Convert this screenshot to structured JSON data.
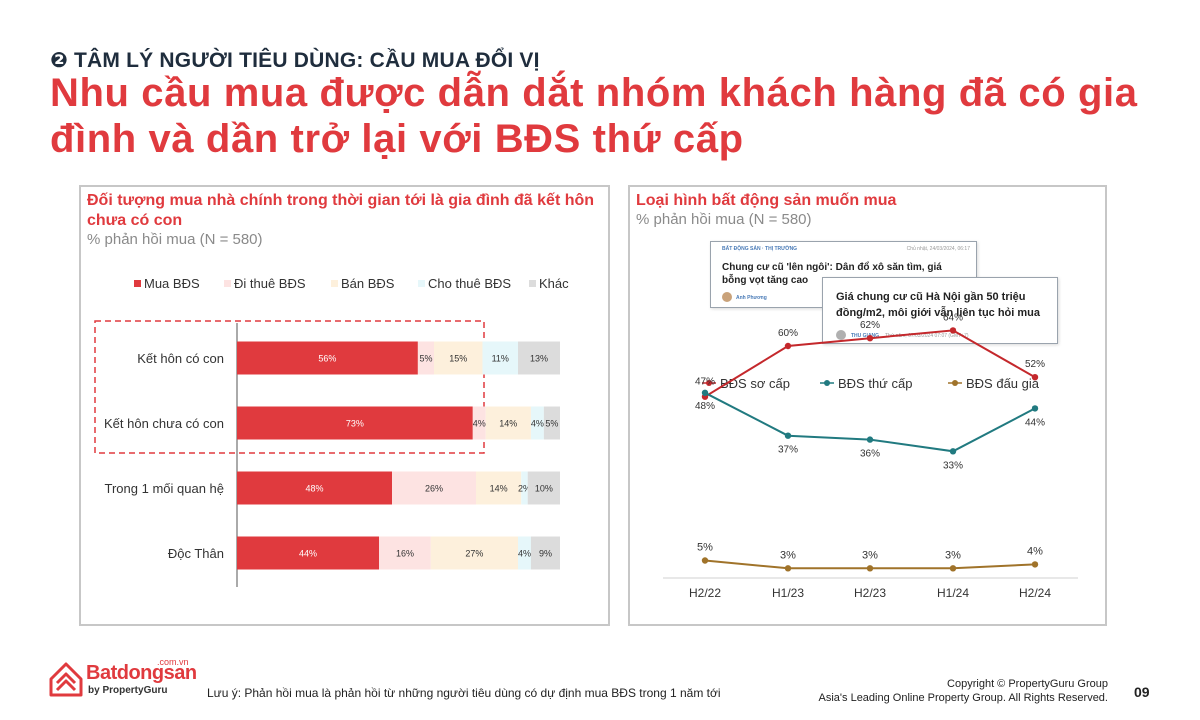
{
  "header": {
    "section_marker": "❷",
    "section_label": "TÂM LÝ NGƯỜI TIÊU DÙNG: CẦU MUA ĐỔI VỊ",
    "headline": "Nhu cầu mua được dẫn dắt nhóm khách hàng đã có gia đình và dần trở lại với BĐS thứ cấp"
  },
  "left_panel": {
    "title": "Đối tượng mua nhà chính trong thời gian tới là gia đình đã kết hôn chưa có con",
    "subtitle": "% phản hồi mua (N = 580)"
  },
  "right_panel": {
    "title": "Loại hình bất động sản muốn mua",
    "subtitle": "% phản hồi mua (N = 580)",
    "news": [
      {
        "tag": "BẤT ĐỘNG SẢN · THỊ TRƯỜNG",
        "date": "Chủ nhật, 24/03/2024, 06:17",
        "headline": "Chung cư cũ 'lên ngôi': Dân đổ xô săn tìm, giá bỗng vọt tăng cao",
        "author": "Anh Phương"
      },
      {
        "headline": "Giá chung cư cũ Hà Nội gần 50 triệu đồng/m2, môi giới vẫn liên tục hỏi mua",
        "author": "THU GIANG",
        "date": "Thứ năm, 07/03/2024 07:07 (GMT+7)"
      }
    ]
  },
  "colors": {
    "accent": "#e03a3e",
    "bar_mua": "#e03a3e",
    "bar_dithue": "#fde3e2",
    "bar_ban": "#fdf0dc",
    "bar_chothue": "#e6f7fa",
    "bar_khac": "#dcdcdc",
    "line_so_cap": "#c4282c",
    "line_thu_cap": "#217a80",
    "line_dau_gia": "#a0732a"
  },
  "chart_data": [
    {
      "type": "bar",
      "orientation": "horizontal",
      "stacked": true,
      "categories": [
        "Kết hôn có con",
        "Kết hôn chưa có con",
        "Trong 1 mối quan hệ",
        "Độc Thân"
      ],
      "series": [
        {
          "name": "Mua BĐS",
          "values": [
            56,
            73,
            48,
            44
          ]
        },
        {
          "name": "Đi thuê BĐS",
          "values": [
            5,
            4,
            26,
            16
          ]
        },
        {
          "name": "Bán BĐS",
          "values": [
            15,
            14,
            14,
            27
          ]
        },
        {
          "name": "Cho thuê BĐS",
          "values": [
            11,
            4,
            2,
            4
          ]
        },
        {
          "name": "Khác",
          "values": [
            13,
            5,
            10,
            9
          ]
        }
      ],
      "legend": "top",
      "highlight": [
        "Kết hôn có con",
        "Kết hôn chưa có con"
      ]
    },
    {
      "type": "line",
      "categories": [
        "H2/22",
        "H1/23",
        "H2/23",
        "H1/24",
        "H2/24"
      ],
      "series": [
        {
          "name": "BĐS sơ cấp",
          "values": [
            47,
            60,
            62,
            64,
            52
          ]
        },
        {
          "name": "BĐS thứ cấp",
          "values": [
            48,
            37,
            36,
            33,
            44
          ]
        },
        {
          "name": "BĐS đấu giá",
          "values": [
            5,
            3,
            3,
            3,
            4
          ]
        }
      ],
      "ylim": [
        0,
        70
      ],
      "legend": "top"
    }
  ],
  "footer": {
    "note": "Lưu ý: Phản hồi mua là phản hồi từ những người tiêu dùng có dự định mua BĐS trong 1 năm tới",
    "copyright_line1": "Copyright © PropertyGuru Group",
    "copyright_line2": "Asia's Leading Online Property Group. All Rights Reserved.",
    "page_number": "09",
    "logo_main": "Batdongsan",
    "logo_com": ".com.vn",
    "logo_sub": "by PropertyGuru"
  }
}
